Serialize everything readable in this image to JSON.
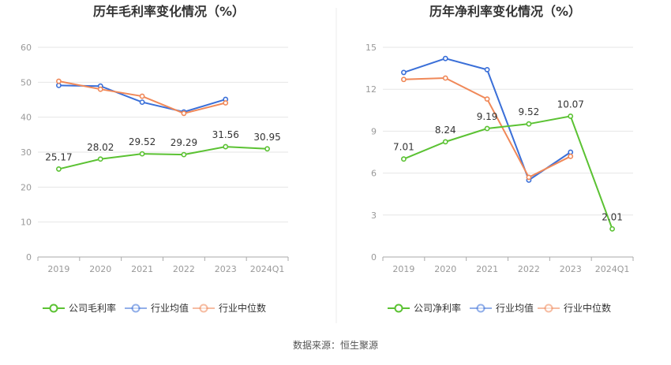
{
  "source": "数据来源：恒生聚源",
  "charts": [
    {
      "title": "历年毛利率变化情况（%）",
      "ticks": [
        "0",
        "10",
        "20",
        "30",
        "40",
        "50",
        "60"
      ],
      "ymax": 60,
      "legend": [
        "公司毛利率",
        "行业均值",
        "行业中位数"
      ]
    },
    {
      "title": "历年净利率变化情况（%）",
      "ticks": [
        "0",
        "3",
        "6",
        "9",
        "12",
        "15"
      ],
      "ymax": 15,
      "legend": [
        "公司净利率",
        "行业均值",
        "行业中位数"
      ]
    }
  ],
  "colors": {
    "company": "#5bc233",
    "avg": "#3a6fd8",
    "median": "#f08858",
    "grid": "#e6e6e6",
    "axis": "#999999",
    "title": "#333333"
  },
  "chart_data": [
    {
      "type": "line",
      "title": "历年毛利率变化情况（%）",
      "categories": [
        "2019",
        "2020",
        "2021",
        "2022",
        "2023",
        "2024Q1"
      ],
      "ylim": [
        0,
        60
      ],
      "grid": true,
      "legend_position": "bottom",
      "series": [
        {
          "name": "公司毛利率",
          "values": [
            25.17,
            28.02,
            29.52,
            29.29,
            31.56,
            30.95
          ],
          "labels": [
            "25.17",
            "28.02",
            "29.52",
            "29.29",
            "31.56",
            "30.95"
          ]
        },
        {
          "name": "行业均值",
          "values": [
            49.1,
            48.9,
            44.3,
            41.5,
            45.1,
            null
          ],
          "labels": []
        },
        {
          "name": "行业中位数",
          "values": [
            50.3,
            48.0,
            46.0,
            41.1,
            44.1,
            null
          ],
          "labels": []
        }
      ]
    },
    {
      "type": "line",
      "title": "历年净利率变化情况（%）",
      "categories": [
        "2019",
        "2020",
        "2021",
        "2022",
        "2023",
        "2024Q1"
      ],
      "ylim": [
        0,
        15
      ],
      "grid": true,
      "legend_position": "bottom",
      "series": [
        {
          "name": "公司净利率",
          "values": [
            7.01,
            8.24,
            9.19,
            9.52,
            10.07,
            2.01
          ],
          "labels": [
            "7.01",
            "8.24",
            "9.19",
            "9.52",
            "10.07",
            "2.01"
          ]
        },
        {
          "name": "行业均值",
          "values": [
            13.2,
            14.2,
            13.4,
            5.5,
            7.5,
            null
          ],
          "labels": []
        },
        {
          "name": "行业中位数",
          "values": [
            12.7,
            12.8,
            11.3,
            5.7,
            7.2,
            null
          ],
          "labels": []
        }
      ]
    }
  ]
}
